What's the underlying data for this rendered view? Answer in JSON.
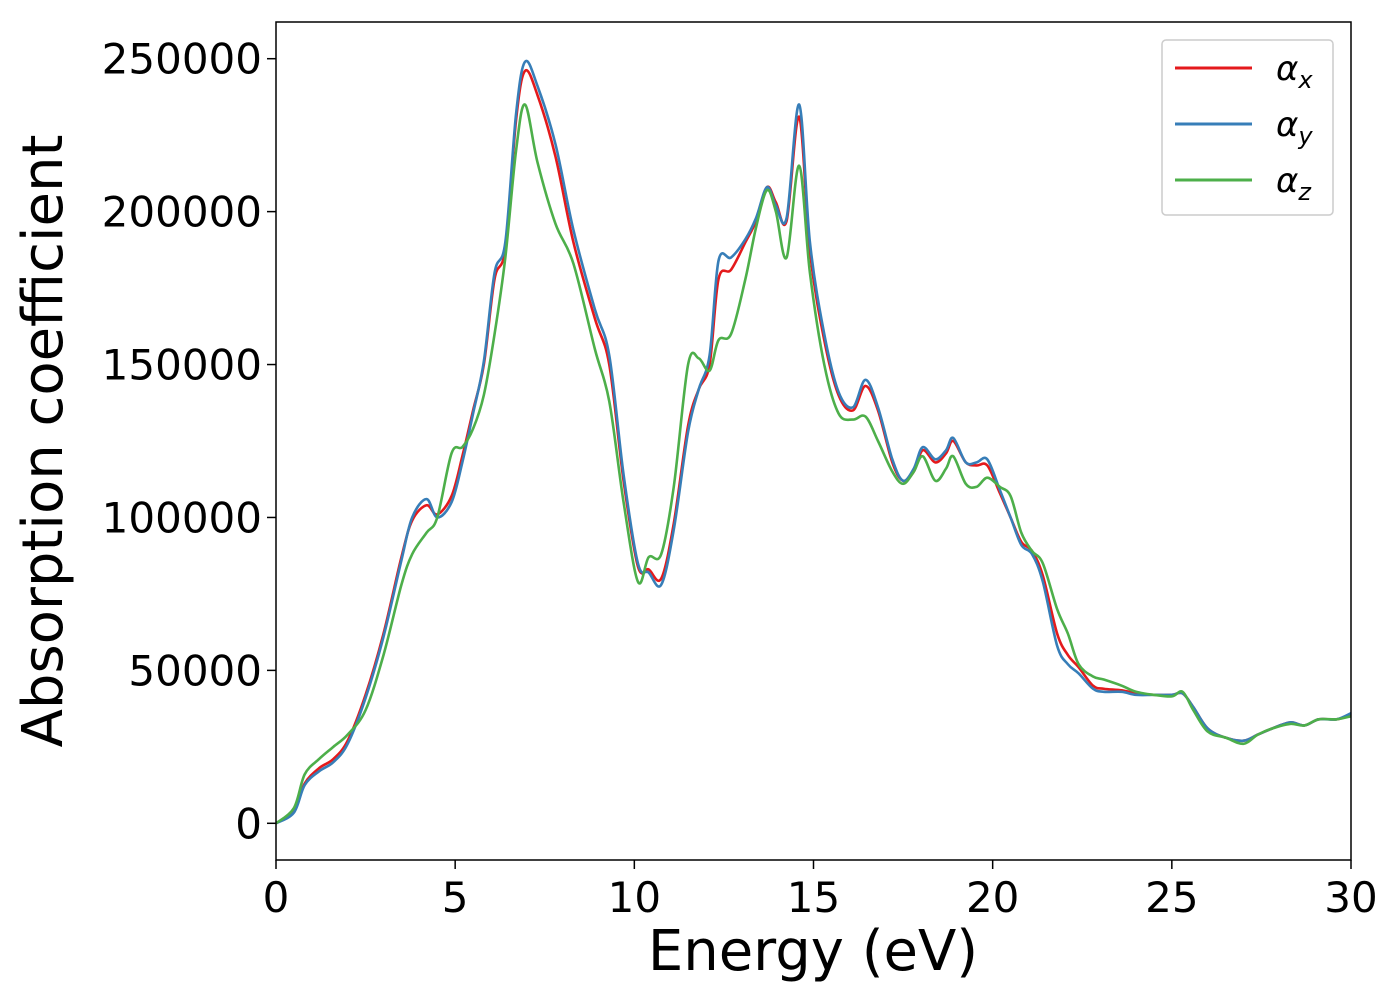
{
  "chart_data": {
    "type": "line",
    "title": "",
    "xlabel": "Energy (eV)",
    "ylabel": "Absorption coefficient",
    "xlim": [
      0,
      30
    ],
    "ylim": [
      -12000,
      262000
    ],
    "xticks": [
      0,
      5,
      10,
      15,
      20,
      25,
      30
    ],
    "yticks": [
      0,
      50000,
      100000,
      150000,
      200000,
      250000
    ],
    "xtick_labels": [
      "0",
      "5",
      "10",
      "15",
      "20",
      "25",
      "30"
    ],
    "ytick_labels": [
      "0",
      "50000",
      "100000",
      "150000",
      "200000",
      "250000"
    ],
    "grid": false,
    "legend_position": "top-right",
    "x": [
      0,
      0.5,
      0.8,
      1.2,
      1.6,
      2.0,
      2.5,
      3.0,
      3.5,
      3.8,
      4.2,
      4.5,
      4.9,
      5.2,
      5.5,
      5.8,
      6.1,
      6.4,
      6.7,
      6.95,
      7.3,
      7.8,
      8.3,
      8.9,
      9.3,
      9.7,
      10.1,
      10.4,
      10.75,
      11.1,
      11.5,
      11.8,
      12.1,
      12.35,
      12.7,
      13.1,
      13.4,
      13.7,
      13.95,
      14.25,
      14.6,
      14.9,
      15.3,
      15.7,
      16.1,
      16.45,
      16.8,
      17.2,
      17.5,
      17.8,
      18.05,
      18.4,
      18.7,
      18.9,
      19.25,
      19.55,
      19.85,
      20.2,
      20.5,
      20.8,
      21.1,
      21.4,
      21.8,
      22.1,
      22.4,
      22.8,
      23.1,
      23.6,
      24.0,
      24.5,
      25.0,
      25.3,
      25.6,
      26.0,
      26.5,
      27.0,
      27.4,
      27.8,
      28.3,
      28.7,
      29.1,
      29.6,
      30.0
    ],
    "series": [
      {
        "name": "α_x",
        "color": "#e41a1c",
        "values": [
          0,
          4000,
          13000,
          18000,
          21000,
          27000,
          42000,
          62000,
          87000,
          99000,
          104000,
          101000,
          107000,
          120000,
          135000,
          150000,
          178000,
          188000,
          230000,
          246000,
          238000,
          218000,
          190000,
          165000,
          150000,
          112000,
          84000,
          83000,
          80000,
          98000,
          130000,
          142000,
          150000,
          178000,
          181000,
          190000,
          197000,
          208000,
          203000,
          197000,
          231000,
          187000,
          158000,
          140000,
          135000,
          143000,
          135000,
          118000,
          112000,
          115000,
          122000,
          118000,
          121000,
          125000,
          118000,
          117000,
          117000,
          108000,
          100000,
          92000,
          89000,
          81000,
          62000,
          55000,
          51000,
          45000,
          44000,
          43500,
          42500,
          42000,
          42000,
          42500,
          38000,
          31000,
          28000,
          27000,
          29000,
          31000,
          33000,
          32000,
          34000,
          34000,
          35500
        ]
      },
      {
        "name": "α_y",
        "color": "#377eb8",
        "values": [
          0,
          3500,
          12500,
          17000,
          20000,
          26000,
          41000,
          61000,
          86000,
          100000,
          106000,
          100000,
          105000,
          118000,
          134000,
          151000,
          180000,
          190000,
          232000,
          249000,
          241000,
          222000,
          194000,
          168000,
          153000,
          114000,
          85000,
          82000,
          78000,
          96000,
          128000,
          142000,
          153000,
          184000,
          185000,
          191000,
          198000,
          208000,
          202000,
          198000,
          235000,
          190000,
          160000,
          141000,
          136000,
          145000,
          136000,
          119000,
          112000,
          116000,
          123000,
          119000,
          122000,
          126000,
          118000,
          118000,
          119000,
          109000,
          100000,
          91000,
          88000,
          79000,
          58000,
          52000,
          49000,
          44000,
          43000,
          43000,
          42000,
          42000,
          42000,
          42500,
          38000,
          31000,
          28000,
          27000,
          29000,
          31000,
          33000,
          32000,
          34000,
          34000,
          36000
        ]
      },
      {
        "name": "α_z",
        "color": "#4daf4a",
        "values": [
          0,
          5000,
          16000,
          21000,
          25000,
          29000,
          37000,
          55000,
          78000,
          88000,
          95000,
          100000,
          121000,
          123000,
          129000,
          140000,
          160000,
          185000,
          220000,
          235000,
          216000,
          196000,
          183000,
          155000,
          138000,
          105000,
          79000,
          87000,
          88000,
          110000,
          150000,
          152000,
          148000,
          158000,
          160000,
          178000,
          195000,
          207000,
          200000,
          185000,
          215000,
          180000,
          150000,
          134000,
          132000,
          133000,
          125000,
          115000,
          111000,
          115000,
          120000,
          112000,
          116000,
          120000,
          111000,
          110000,
          113000,
          110000,
          107000,
          95000,
          89000,
          85000,
          70000,
          62000,
          52000,
          48000,
          47000,
          45000,
          43000,
          42000,
          41500,
          43000,
          37000,
          30000,
          28000,
          26000,
          29000,
          31000,
          32500,
          32000,
          34000,
          34000,
          35000
        ]
      }
    ]
  }
}
